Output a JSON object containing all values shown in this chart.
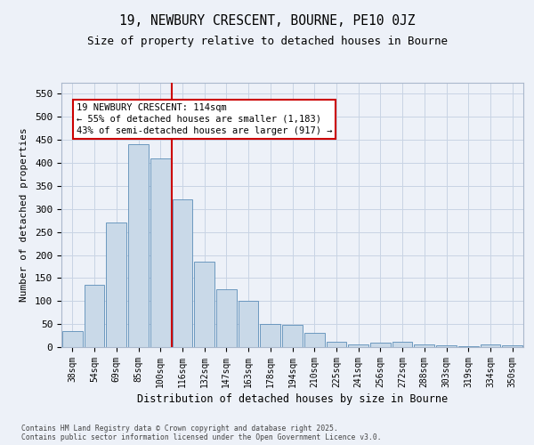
{
  "title1": "19, NEWBURY CRESCENT, BOURNE, PE10 0JZ",
  "title2": "Size of property relative to detached houses in Bourne",
  "xlabel": "Distribution of detached houses by size in Bourne",
  "ylabel": "Number of detached properties",
  "categories": [
    "38sqm",
    "54sqm",
    "69sqm",
    "85sqm",
    "100sqm",
    "116sqm",
    "132sqm",
    "147sqm",
    "163sqm",
    "178sqm",
    "194sqm",
    "210sqm",
    "225sqm",
    "241sqm",
    "256sqm",
    "272sqm",
    "288sqm",
    "303sqm",
    "319sqm",
    "334sqm",
    "350sqm"
  ],
  "values": [
    35,
    135,
    270,
    440,
    410,
    320,
    185,
    125,
    100,
    50,
    48,
    30,
    12,
    5,
    10,
    12,
    5,
    3,
    2,
    5,
    3
  ],
  "bar_color": "#c9d9e8",
  "bar_edge_color": "#5b8db8",
  "grid_color": "#c8d4e4",
  "bg_color": "#edf1f8",
  "fig_bg_color": "#edf1f8",
  "vline_color": "#cc0000",
  "vline_pos": 4.5,
  "annotation_line1": "19 NEWBURY CRESCENT: 114sqm",
  "annotation_line2": "← 55% of detached houses are smaller (1,183)",
  "annotation_line3": "43% of semi-detached houses are larger (917) →",
  "annotation_box_edge_color": "#cc0000",
  "footer_text": "Contains HM Land Registry data © Crown copyright and database right 2025.\nContains public sector information licensed under the Open Government Licence v3.0.",
  "ylim_max": 575,
  "yticks": [
    0,
    50,
    100,
    150,
    200,
    250,
    300,
    350,
    400,
    450,
    500,
    550
  ]
}
